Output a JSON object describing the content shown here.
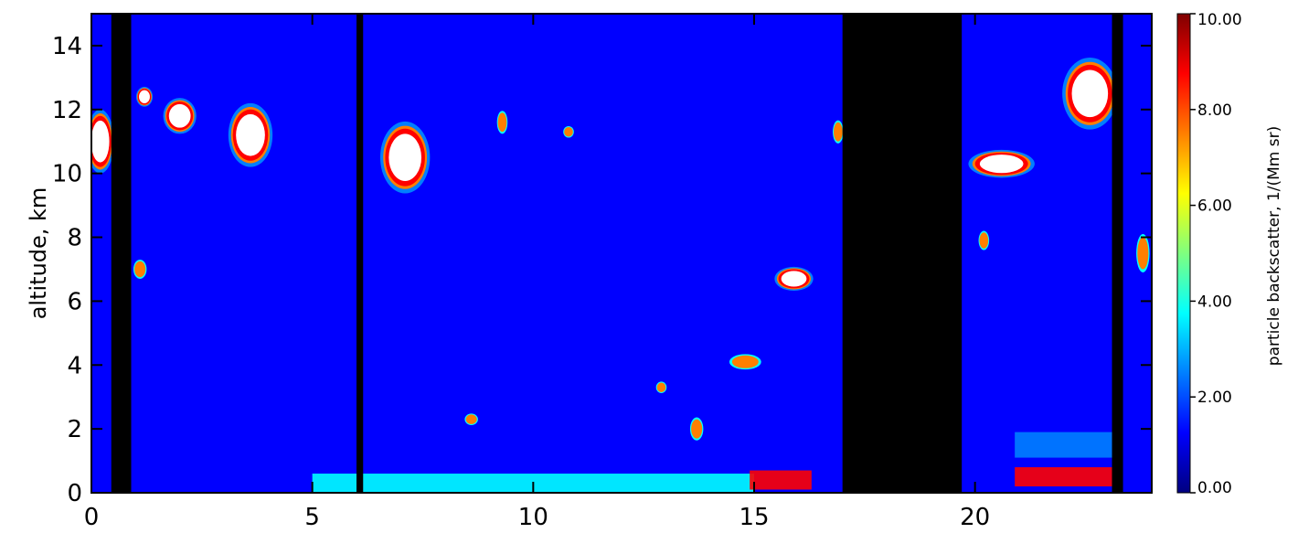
{
  "chart_data": {
    "type": "heatmap",
    "title": "",
    "xlabel": "",
    "ylabel": "altitude, km",
    "xlim": [
      0,
      24
    ],
    "ylim": [
      0,
      15
    ],
    "x_ticks": [
      0,
      5,
      10,
      15,
      20
    ],
    "y_ticks": [
      0,
      2,
      4,
      6,
      8,
      10,
      12,
      14
    ],
    "colorbar": {
      "label": "particle backscatter, 1/(Mm sr)",
      "range": [
        0,
        10
      ],
      "ticks": [
        {
          "value": 0,
          "label": "0.00"
        },
        {
          "value": 2,
          "label": "2.00"
        },
        {
          "value": 4,
          "label": "4.00"
        },
        {
          "value": 6,
          "label": "6.00"
        },
        {
          "value": 8,
          "label": "8.00"
        },
        {
          "value": 10,
          "label": "10.00"
        }
      ],
      "colormap": [
        "#00007f",
        "#0000ff",
        "#007fff",
        "#00ffff",
        "#7fff7f",
        "#ffff00",
        "#ff7f00",
        "#ff0000",
        "#7f0000"
      ]
    },
    "background_value": 1.0,
    "no_data_intervals": [
      {
        "x0": 0.45,
        "x1": 0.9
      },
      {
        "x0": 6.0,
        "x1": 6.15
      },
      {
        "x0": 17.0,
        "x1": 19.7
      },
      {
        "x0": 23.1,
        "x1": 23.35
      }
    ],
    "features": [
      {
        "type": "cloud",
        "x": 0.2,
        "y": 11.0,
        "w": 0.5,
        "h": 1.6,
        "value": 10
      },
      {
        "type": "cloud",
        "x": 1.2,
        "y": 12.4,
        "w": 0.3,
        "h": 0.5,
        "value": 9
      },
      {
        "type": "cloud",
        "x": 2.0,
        "y": 11.8,
        "w": 0.6,
        "h": 0.9,
        "value": 10
      },
      {
        "type": "cloud",
        "x": 3.6,
        "y": 11.2,
        "w": 0.8,
        "h": 1.6,
        "value": 10
      },
      {
        "type": "cloud",
        "x": 7.1,
        "y": 10.5,
        "w": 0.9,
        "h": 1.8,
        "value": 10
      },
      {
        "type": "cloud",
        "x": 9.3,
        "y": 11.6,
        "w": 0.2,
        "h": 0.6,
        "value": 8
      },
      {
        "type": "cloud",
        "x": 10.8,
        "y": 11.3,
        "w": 0.2,
        "h": 0.3,
        "value": 7
      },
      {
        "type": "cloud",
        "x": 16.9,
        "y": 11.3,
        "w": 0.2,
        "h": 0.6,
        "value": 7
      },
      {
        "type": "cloud",
        "x": 15.9,
        "y": 6.7,
        "w": 0.7,
        "h": 0.6,
        "value": 10
      },
      {
        "type": "cloud",
        "x": 14.8,
        "y": 4.1,
        "w": 0.6,
        "h": 0.4,
        "value": 8
      },
      {
        "type": "cloud",
        "x": 1.1,
        "y": 7.0,
        "w": 0.25,
        "h": 0.5,
        "value": 8
      },
      {
        "type": "cloud",
        "x": 20.6,
        "y": 10.3,
        "w": 1.2,
        "h": 0.7,
        "value": 9
      },
      {
        "type": "cloud",
        "x": 22.6,
        "y": 12.5,
        "w": 1.0,
        "h": 1.8,
        "value": 10
      },
      {
        "type": "cloud",
        "x": 12.9,
        "y": 3.3,
        "w": 0.2,
        "h": 0.3,
        "value": 7
      },
      {
        "type": "cloud",
        "x": 13.7,
        "y": 2.0,
        "w": 0.25,
        "h": 0.6,
        "value": 8
      },
      {
        "type": "cloud",
        "x": 8.6,
        "y": 2.3,
        "w": 0.25,
        "h": 0.3,
        "value": 8
      },
      {
        "type": "cloud",
        "x": 23.8,
        "y": 7.5,
        "w": 0.25,
        "h": 1.0,
        "value": 7
      },
      {
        "type": "cloud",
        "x": 20.2,
        "y": 7.9,
        "w": 0.2,
        "h": 0.5,
        "value": 8
      },
      {
        "type": "boundary_layer",
        "x": 10.0,
        "y": 0.3,
        "w": 10.0,
        "h": 0.6,
        "value": 4
      },
      {
        "type": "boundary_layer",
        "x": 22.0,
        "y": 0.5,
        "w": 2.2,
        "h": 0.6,
        "value": 9
      },
      {
        "type": "boundary_layer",
        "x": 15.6,
        "y": 0.4,
        "w": 1.4,
        "h": 0.6,
        "value": 9
      },
      {
        "type": "boundary_layer",
        "x": 22.0,
        "y": 1.5,
        "w": 2.2,
        "h": 0.8,
        "value": 3
      }
    ]
  }
}
